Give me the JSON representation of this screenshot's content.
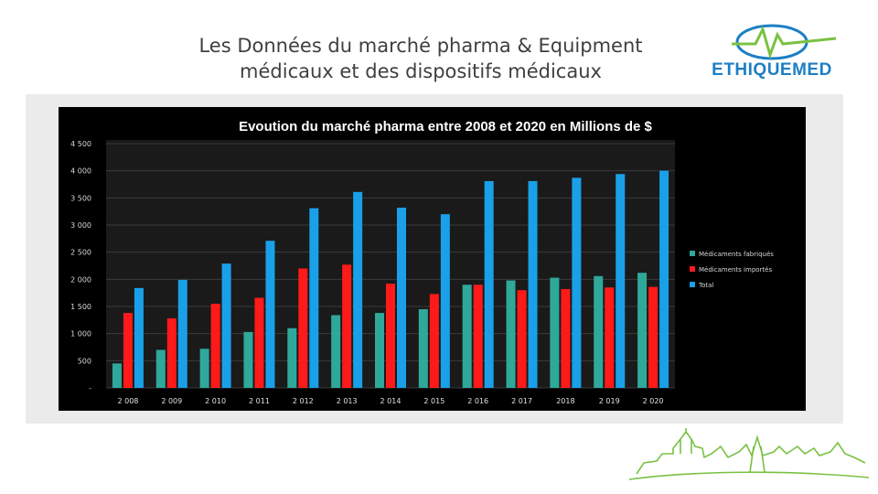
{
  "slide": {
    "title_line1": "Les Données du  marché pharma & Equipment",
    "title_line2": "médicaux et des dispositifs médicaux"
  },
  "logo": {
    "text_part1": "ETHIQUE",
    "text_part2": "MED",
    "colors": {
      "blue": "#1c7fc4",
      "green": "#7ac143"
    }
  },
  "chart_data": {
    "type": "bar",
    "title": "Evoution du marché pharma entre 2008 et 2020 en Millions de $",
    "categories": [
      "2 008",
      "2 009",
      "2 010",
      "2 011",
      "2 012",
      "2 013",
      "2 014",
      "2 015",
      "2 016",
      "2 017",
      "2018",
      "2 019",
      "2 020"
    ],
    "series": [
      {
        "name": "Médicaments fabriqués",
        "color": "#2fa89a",
        "values": [
          450,
          700,
          720,
          1030,
          1100,
          1340,
          1380,
          1450,
          1900,
          1980,
          2030,
          2060,
          2120
        ]
      },
      {
        "name": "Médicaments  importés",
        "color": "#ff1a1a",
        "values": [
          1380,
          1280,
          1550,
          1660,
          2200,
          2270,
          1920,
          1730,
          1900,
          1800,
          1820,
          1850,
          1860
        ]
      },
      {
        "name": "Total",
        "color": "#1aa0e8",
        "values": [
          1840,
          1990,
          2290,
          2710,
          3310,
          3610,
          3320,
          3200,
          3810,
          3810,
          3870,
          3940,
          4000
        ]
      }
    ],
    "ylim": [
      0,
      4500
    ],
    "yticks": [
      "-",
      "500",
      "1 000",
      "1 500",
      "2 000",
      "2 500",
      "3 000",
      "3 500",
      "4 000",
      "4 500"
    ],
    "grid": true,
    "legend_position": "right",
    "background": "#000000"
  }
}
